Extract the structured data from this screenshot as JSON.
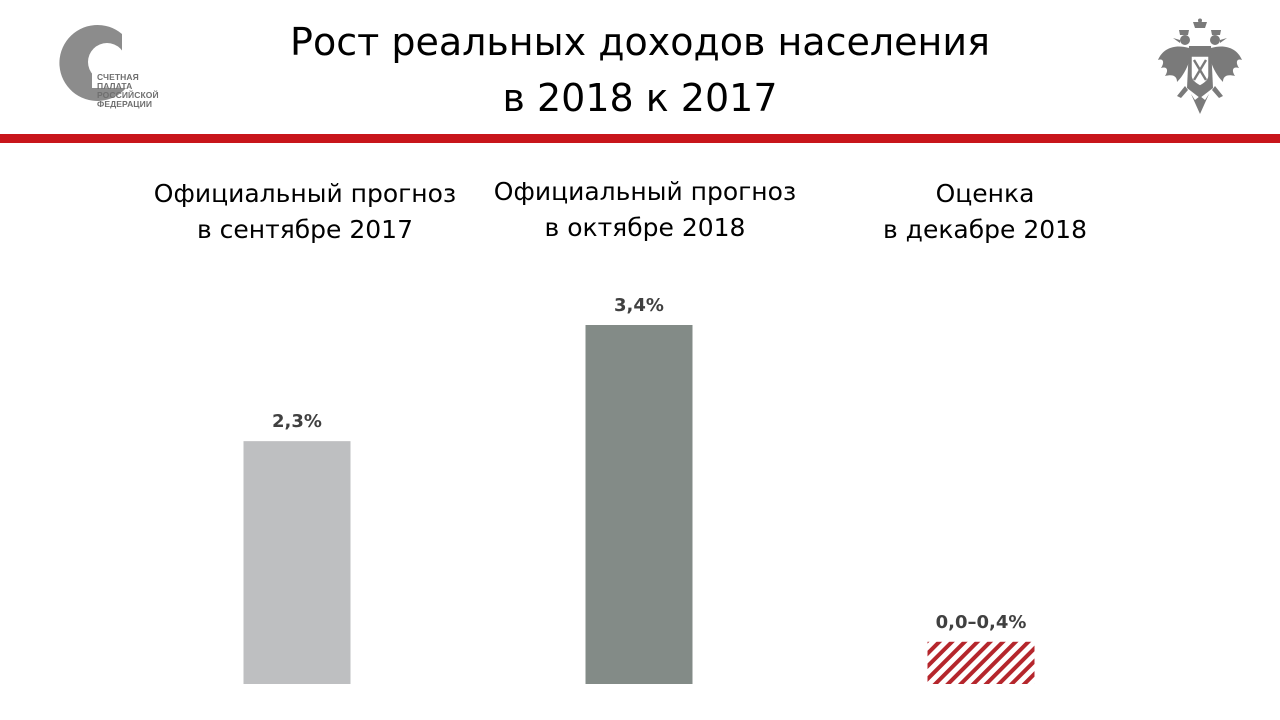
{
  "header": {
    "title_line1": "Рост реальных доходов населения",
    "title_line2": "в 2018 к 2017",
    "logo_text": [
      "СЧЕТНАЯ",
      "ПАЛАТА",
      "РОССИЙСКОЙ",
      "ФЕДЕРАЦИИ"
    ]
  },
  "colors": {
    "accent_rule": "#c8151b",
    "bar_1": "#bebfc1",
    "bar_2": "#838b87",
    "bar_3_hatch": "#b5262c",
    "logo_grey": "#8c8c8c"
  },
  "chart_data": {
    "type": "bar",
    "title": "Рост реальных доходов населения в 2018 к 2017",
    "categories": [
      [
        "Официальный прогноз",
        "в сентябре 2017"
      ],
      [
        "Официальный прогноз",
        "в октябре 2018"
      ],
      [
        "Оценка",
        "в декабре 2018"
      ]
    ],
    "values": [
      2.3,
      3.4,
      0.4
    ],
    "ranges": [
      null,
      null,
      [
        0.0,
        0.4
      ]
    ],
    "value_labels": [
      "2,3%",
      "3,4%",
      "0,0–0,4%"
    ],
    "styles": [
      "solid",
      "solid",
      "hatched"
    ],
    "ylim": [
      0,
      3.4
    ],
    "grid": false,
    "legend": "none"
  }
}
